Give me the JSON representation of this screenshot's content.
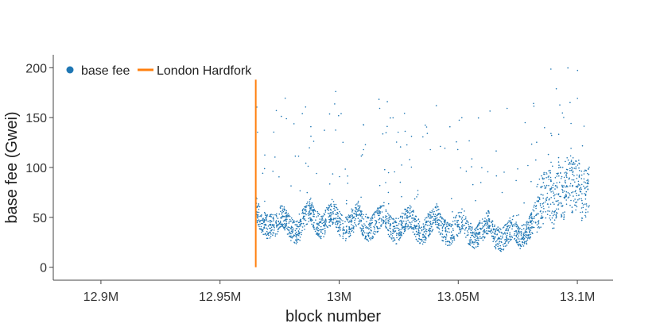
{
  "chart_data": {
    "type": "scatter",
    "xlabel": "block number",
    "ylabel": "base fee (Gwei)",
    "xlim": [
      12880000,
      13115000
    ],
    "ylim": [
      -13,
      213
    ],
    "x_ticks": [
      {
        "value": 12900000,
        "label": "12.9M"
      },
      {
        "value": 12950000,
        "label": "12.95M"
      },
      {
        "value": 13000000,
        "label": "13M"
      },
      {
        "value": 13050000,
        "label": "13.05M"
      },
      {
        "value": 13100000,
        "label": "13.1M"
      }
    ],
    "y_ticks": [
      {
        "value": 0,
        "label": "0"
      },
      {
        "value": 50,
        "label": "50"
      },
      {
        "value": 100,
        "label": "100"
      },
      {
        "value": 150,
        "label": "150"
      },
      {
        "value": 200,
        "label": "200"
      }
    ],
    "grid": false,
    "legend_position": "top-left",
    "series": [
      {
        "name": "base fee",
        "style": "scatter",
        "color": "#1f77b4",
        "x_range": [
          12965000,
          13105000
        ],
        "points": [
          [
            12965000,
            60
          ],
          [
            12967000,
            48
          ],
          [
            12970000,
            40
          ],
          [
            12973000,
            42
          ],
          [
            12976000,
            52
          ],
          [
            12978000,
            45
          ],
          [
            12980000,
            38
          ],
          [
            12983000,
            34
          ],
          [
            12985000,
            48
          ],
          [
            12988000,
            58
          ],
          [
            12990000,
            46
          ],
          [
            12993000,
            39
          ],
          [
            12995000,
            50
          ],
          [
            12998000,
            56
          ],
          [
            13000000,
            44
          ],
          [
            13003000,
            38
          ],
          [
            13006000,
            47
          ],
          [
            13008000,
            55
          ],
          [
            13010000,
            42
          ],
          [
            13013000,
            37
          ],
          [
            13016000,
            47
          ],
          [
            13019000,
            54
          ],
          [
            13021000,
            41
          ],
          [
            13024000,
            35
          ],
          [
            13027000,
            45
          ],
          [
            13030000,
            52
          ],
          [
            13032000,
            40
          ],
          [
            13035000,
            33
          ],
          [
            13038000,
            44
          ],
          [
            13041000,
            52
          ],
          [
            13043000,
            39
          ],
          [
            13046000,
            32
          ],
          [
            13049000,
            41
          ],
          [
            13052000,
            49
          ],
          [
            13054000,
            36
          ],
          [
            13057000,
            29
          ],
          [
            13060000,
            38
          ],
          [
            13063000,
            46
          ],
          [
            13065000,
            32
          ],
          [
            13068000,
            26
          ],
          [
            13071000,
            35
          ],
          [
            13073000,
            42
          ],
          [
            13076000,
            30
          ],
          [
            13079000,
            34
          ],
          [
            13081000,
            44
          ],
          [
            13083000,
            58
          ],
          [
            13085000,
            66
          ],
          [
            13088000,
            75
          ],
          [
            13090000,
            62
          ],
          [
            13092000,
            82
          ],
          [
            13094000,
            70
          ],
          [
            13096000,
            95
          ],
          [
            13098000,
            78
          ],
          [
            13100000,
            86
          ],
          [
            13102000,
            72
          ],
          [
            13105000,
            80
          ]
        ]
      },
      {
        "name": "London Hardfork",
        "style": "line",
        "color": "#ff7f0e",
        "x": [
          12965000,
          12965000
        ],
        "y": [
          0,
          188
        ]
      }
    ]
  }
}
